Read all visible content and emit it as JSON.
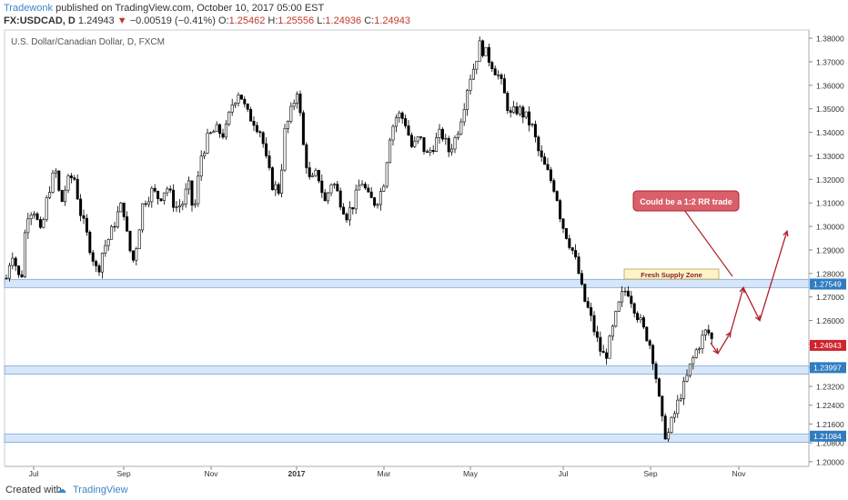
{
  "header": {
    "author": "Tradewonk",
    "published": "published on TradingView.com, October 10, 2017 05:00 EST",
    "symbol": "FX:USDCAD, D",
    "last": "1.24943",
    "change": "−0.00519 (−0.41%)",
    "open_label": "O:",
    "open": "1.25462",
    "high_label": "H:",
    "high": "1.25556",
    "low_label": "L:",
    "low": "1.24936",
    "close_label": "C:",
    "close": "1.24943"
  },
  "footer": {
    "created_with": "Created with",
    "brand": "TradingView"
  },
  "colors": {
    "up": "#ffffff",
    "down": "#000000",
    "zone": "#c9def5",
    "arrow": "#b0202c",
    "axis_label_bg": "#2f7cc0",
    "last_label_bg": "#d0242e"
  },
  "chart_data": {
    "type": "candlestick",
    "title": "U.S. Dollar/Canadian Dollar, D, FXCM",
    "x_labels": [
      "Jul",
      "Sep",
      "Nov",
      "2017",
      "Mar",
      "May",
      "Jul",
      "Sep",
      "Nov"
    ],
    "y_ticks": [
      "1.38000",
      "1.37000",
      "1.36000",
      "1.35000",
      "1.34000",
      "1.33000",
      "1.32000",
      "1.31000",
      "1.30000",
      "1.29000",
      "1.28000",
      "1.27000",
      "1.26000",
      "1.25000",
      "1.24000",
      "1.23200",
      "1.22400",
      "1.21600",
      "1.20800",
      "1.20000"
    ],
    "ylim": [
      1.198,
      1.3835
    ],
    "price_path": [
      [
        0,
        1.278
      ],
      [
        6,
        1.29
      ],
      [
        10,
        1.284
      ],
      [
        16,
        1.275
      ],
      [
        22,
        1.305
      ],
      [
        30,
        1.308
      ],
      [
        38,
        1.296
      ],
      [
        46,
        1.315
      ],
      [
        54,
        1.324
      ],
      [
        60,
        1.309
      ],
      [
        66,
        1.318
      ],
      [
        74,
        1.322
      ],
      [
        82,
        1.305
      ],
      [
        90,
        1.294
      ],
      [
        100,
        1.28
      ],
      [
        106,
        1.29
      ],
      [
        114,
        1.296
      ],
      [
        122,
        1.305
      ],
      [
        128,
        1.31
      ],
      [
        134,
        1.292
      ],
      [
        140,
        1.285
      ],
      [
        150,
        1.31
      ],
      [
        160,
        1.315
      ],
      [
        168,
        1.312
      ],
      [
        176,
        1.317
      ],
      [
        186,
        1.308
      ],
      [
        194,
        1.31
      ],
      [
        200,
        1.318
      ],
      [
        206,
        1.305
      ],
      [
        214,
        1.33
      ],
      [
        222,
        1.338
      ],
      [
        230,
        1.341
      ],
      [
        240,
        1.339
      ],
      [
        248,
        1.352
      ],
      [
        256,
        1.358
      ],
      [
        264,
        1.348
      ],
      [
        272,
        1.345
      ],
      [
        280,
        1.34
      ],
      [
        286,
        1.327
      ],
      [
        292,
        1.318
      ],
      [
        300,
        1.315
      ],
      [
        306,
        1.34
      ],
      [
        314,
        1.35
      ],
      [
        320,
        1.359
      ],
      [
        326,
        1.335
      ],
      [
        334,
        1.318
      ],
      [
        342,
        1.323
      ],
      [
        350,
        1.31
      ],
      [
        358,
        1.32
      ],
      [
        366,
        1.312
      ],
      [
        374,
        1.305
      ],
      [
        382,
        1.31
      ],
      [
        390,
        1.32
      ],
      [
        398,
        1.312
      ],
      [
        406,
        1.31
      ],
      [
        414,
        1.317
      ],
      [
        422,
        1.34
      ],
      [
        430,
        1.348
      ],
      [
        438,
        1.345
      ],
      [
        446,
        1.333
      ],
      [
        454,
        1.338
      ],
      [
        462,
        1.33
      ],
      [
        470,
        1.335
      ],
      [
        478,
        1.34
      ],
      [
        486,
        1.332
      ],
      [
        494,
        1.338
      ],
      [
        502,
        1.35
      ],
      [
        508,
        1.362
      ],
      [
        514,
        1.368
      ],
      [
        520,
        1.377
      ],
      [
        526,
        1.374
      ],
      [
        534,
        1.369
      ],
      [
        542,
        1.363
      ],
      [
        548,
        1.355
      ],
      [
        554,
        1.347
      ],
      [
        562,
        1.35
      ],
      [
        570,
        1.347
      ],
      [
        578,
        1.342
      ],
      [
        586,
        1.33
      ],
      [
        592,
        1.325
      ],
      [
        598,
        1.32
      ],
      [
        604,
        1.315
      ],
      [
        610,
        1.302
      ],
      [
        616,
        1.296
      ],
      [
        622,
        1.29
      ],
      [
        628,
        1.282
      ],
      [
        634,
        1.27
      ],
      [
        640,
        1.264
      ],
      [
        646,
        1.256
      ],
      [
        652,
        1.248
      ],
      [
        658,
        1.244
      ],
      [
        664,
        1.252
      ],
      [
        670,
        1.262
      ],
      [
        676,
        1.27
      ],
      [
        682,
        1.274
      ],
      [
        688,
        1.268
      ],
      [
        694,
        1.262
      ],
      [
        700,
        1.256
      ],
      [
        706,
        1.252
      ],
      [
        712,
        1.242
      ],
      [
        716,
        1.23
      ],
      [
        720,
        1.218
      ],
      [
        724,
        1.212
      ],
      [
        728,
        1.212
      ],
      [
        732,
        1.218
      ],
      [
        736,
        1.222
      ],
      [
        740,
        1.228
      ],
      [
        746,
        1.233
      ],
      [
        752,
        1.241
      ],
      [
        758,
        1.247
      ],
      [
        764,
        1.252
      ],
      [
        770,
        1.256
      ],
      [
        774,
        1.253
      ],
      [
        778,
        1.2494
      ]
    ],
    "zones": [
      {
        "low": 1.274,
        "high": 1.2775,
        "label": "1.27549"
      },
      {
        "low": 1.2372,
        "high": 1.2407,
        "label": "1.23997"
      },
      {
        "low": 1.2082,
        "high": 1.2118,
        "label": "1.21084"
      }
    ],
    "last_price_label": "1.24943",
    "annotations": {
      "zone_box": "Fresh Supply Zone",
      "callout": "Could be a 1:2 RR trade"
    },
    "forecast_path": [
      [
        776,
        1.2505
      ],
      [
        784,
        1.246
      ],
      [
        798,
        1.255
      ],
      [
        812,
        1.274
      ],
      [
        830,
        1.26
      ],
      [
        860,
        1.298
      ]
    ]
  }
}
